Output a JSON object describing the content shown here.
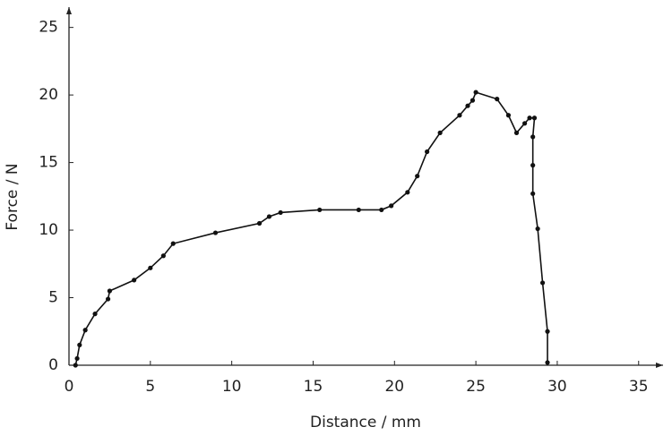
{
  "chart_data": {
    "type": "line",
    "x_label": "Distance / mm",
    "y_label": "Force / N",
    "color": "#111111",
    "x": [
      0.4,
      0.5,
      0.65,
      1.0,
      1.6,
      2.4,
      2.5,
      4.0,
      5.0,
      5.8,
      6.4,
      9.0,
      11.7,
      12.3,
      13.0,
      15.4,
      17.8,
      19.2,
      19.8,
      20.8,
      21.4,
      22.0,
      22.8,
      24.0,
      24.5,
      24.8,
      25.0,
      26.3,
      27.0,
      27.5,
      28.0,
      28.3,
      28.6,
      28.5,
      28.5,
      28.5,
      28.8,
      29.1,
      29.4,
      29.4
    ],
    "values": [
      0,
      0.5,
      1.5,
      2.6,
      3.8,
      4.9,
      5.5,
      6.3,
      7.2,
      8.1,
      9.0,
      9.8,
      10.5,
      11.0,
      11.3,
      11.5,
      11.5,
      11.5,
      11.8,
      12.8,
      14.0,
      15.8,
      17.2,
      18.5,
      19.2,
      19.6,
      20.2,
      19.7,
      18.5,
      17.2,
      17.9,
      18.3,
      18.3,
      16.9,
      14.8,
      12.7,
      10.1,
      6.1,
      2.5,
      0.2
    ],
    "xlim": [
      0,
      36.5
    ],
    "ylim": [
      0,
      26.5
    ],
    "xticks": [
      0,
      5,
      10,
      15,
      20,
      25,
      30,
      35
    ],
    "yticks": [
      0,
      5,
      10,
      15,
      20,
      25
    ]
  }
}
